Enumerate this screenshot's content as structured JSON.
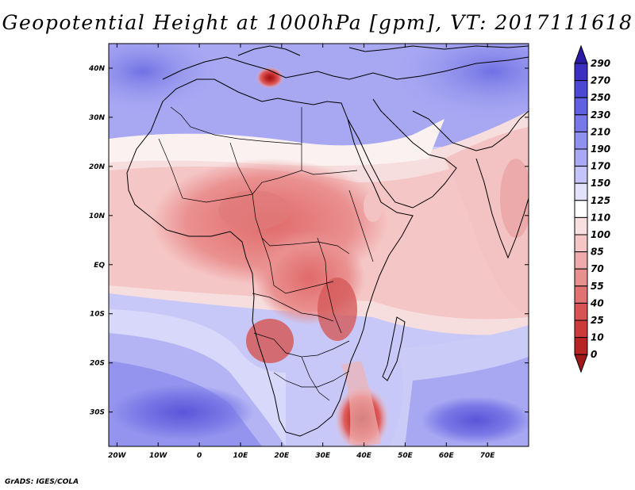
{
  "title": "Geopotential Height at 1000hPa [gpm], VT: 2017111618",
  "credit": "GrADS: IGES/COLA",
  "map": {
    "lat_labels": [
      "40N",
      "30N",
      "20N",
      "10N",
      "EQ",
      "10S",
      "20S",
      "30S"
    ],
    "lon_labels": [
      "20W",
      "10W",
      "0",
      "10E",
      "20E",
      "30E",
      "40E",
      "50E",
      "60E",
      "70E"
    ],
    "lon_range": [
      -22,
      80
    ],
    "lat_range": [
      -37,
      45
    ]
  },
  "colorbar": {
    "labels": [
      "290",
      "270",
      "250",
      "230",
      "210",
      "190",
      "170",
      "150",
      "125",
      "110",
      "100",
      "85",
      "70",
      "55",
      "40",
      "25",
      "10",
      "0"
    ],
    "colors": [
      "#2a1aa6",
      "#3a2fc0",
      "#4b48d6",
      "#6060e2",
      "#7878ea",
      "#9090ef",
      "#a8a8f4",
      "#c4c4f8",
      "#e2e2fb",
      "#ffffff",
      "#f9e0e0",
      "#f5c6c6",
      "#efabab",
      "#e89090",
      "#e07272",
      "#d85454",
      "#cc3a3a",
      "#b82424",
      "#a01818"
    ]
  }
}
